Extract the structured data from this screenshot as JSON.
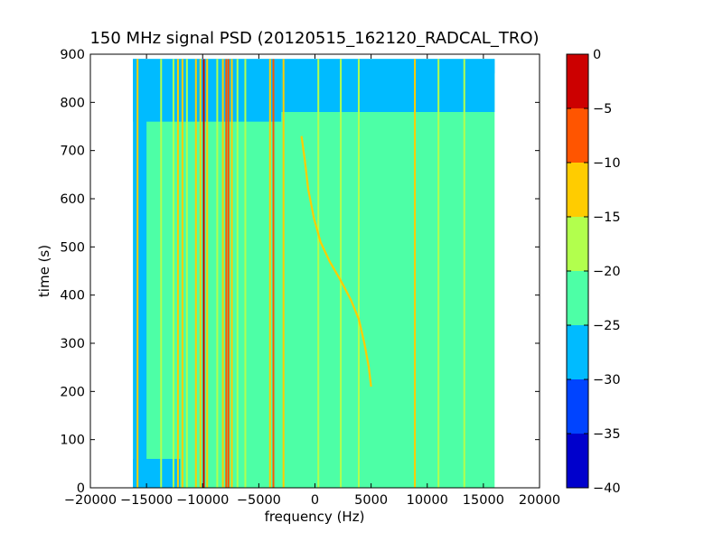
{
  "chart_data": {
    "type": "heatmap",
    "title": "150 MHz signal PSD (20120515_162120_RADCAL_TRO)",
    "xlabel": "frequency (Hz)",
    "ylabel": "time (s)",
    "xlim": [
      -20000,
      20000
    ],
    "ylim": [
      0,
      900
    ],
    "x_ticks": [
      -20000,
      -15000,
      -10000,
      -5000,
      0,
      5000,
      10000,
      15000,
      20000
    ],
    "y_ticks": [
      0,
      100,
      200,
      300,
      400,
      500,
      600,
      700,
      800,
      900
    ],
    "data_extent": {
      "freq_hz": [
        -16200,
        16000
      ],
      "time_s": [
        0,
        890
      ]
    },
    "colorbar": {
      "ticks": [
        0,
        -5,
        -10,
        -15,
        -20,
        -25,
        -30,
        -35,
        -40
      ],
      "levels": [
        {
          "from": -40,
          "to": -35,
          "color": "#0000cc"
        },
        {
          "from": -35,
          "to": -30,
          "color": "#0044ff"
        },
        {
          "from": -30,
          "to": -25,
          "color": "#00bbff"
        },
        {
          "from": -25,
          "to": -20,
          "color": "#4dffa6"
        },
        {
          "from": -20,
          "to": -15,
          "color": "#b2ff4d"
        },
        {
          "from": -15,
          "to": -10,
          "color": "#ffcc00"
        },
        {
          "from": -10,
          "to": -5,
          "color": "#ff5500"
        },
        {
          "from": -5,
          "to": 0,
          "color": "#cc0000"
        }
      ]
    },
    "background_regions": [
      {
        "freq": [
          -16200,
          16000
        ],
        "time": [
          0,
          890
        ],
        "level_db": -22.5
      },
      {
        "freq": [
          -3000,
          16000
        ],
        "time": [
          780,
          890
        ],
        "level_db": -27.5
      },
      {
        "freq": [
          -16200,
          -3000
        ],
        "time": [
          760,
          890
        ],
        "level_db": -27.5
      },
      {
        "freq": [
          -16200,
          -12000
        ],
        "time": [
          0,
          60
        ],
        "level_db": -27.5
      },
      {
        "freq": [
          -16200,
          -15000
        ],
        "time": [
          0,
          890
        ],
        "level_db": -27.5
      },
      {
        "freq": [
          -16200,
          16000
        ],
        "time": [
          860,
          890
        ],
        "level_db": -27.5
      }
    ],
    "steady_lines": [
      {
        "freq_hz": -15800,
        "time": [
          0,
          890
        ],
        "level_db": -12.5
      },
      {
        "freq_hz": -13700,
        "time": [
          0,
          890
        ],
        "level_db": -17.5
      },
      {
        "freq_hz": -12600,
        "time": [
          0,
          890
        ],
        "level_db": -17.5
      },
      {
        "freq_hz": -12200,
        "time": [
          0,
          890
        ],
        "level_db": -12.5
      },
      {
        "freq_hz": -11800,
        "time": [
          0,
          890
        ],
        "level_db": -12.5
      },
      {
        "freq_hz": -11400,
        "time": [
          0,
          890
        ],
        "level_db": -17.5
      },
      {
        "freq_hz": -10600,
        "time": [
          0,
          890
        ],
        "level_db": -12.5
      },
      {
        "freq_hz": -10200,
        "time": [
          0,
          890
        ],
        "level_db": -12.5
      },
      {
        "freq_hz": -9900,
        "time": [
          0,
          890
        ],
        "level_db": -2.5
      },
      {
        "freq_hz": -9600,
        "time": [
          0,
          890
        ],
        "level_db": -12.5
      },
      {
        "freq_hz": -8700,
        "time": [
          0,
          890
        ],
        "level_db": -17.5
      },
      {
        "freq_hz": -8200,
        "time": [
          0,
          890
        ],
        "level_db": -12.5
      },
      {
        "freq_hz": -7900,
        "time": [
          0,
          890
        ],
        "level_db": -7.5
      },
      {
        "freq_hz": -7700,
        "time": [
          0,
          890
        ],
        "level_db": -7.5
      },
      {
        "freq_hz": -7400,
        "time": [
          0,
          890
        ],
        "level_db": -12.5
      },
      {
        "freq_hz": -6900,
        "time": [
          0,
          890
        ],
        "level_db": -17.5
      },
      {
        "freq_hz": -6200,
        "time": [
          0,
          890
        ],
        "level_db": -17.5
      },
      {
        "freq_hz": -4000,
        "time": [
          0,
          890
        ],
        "level_db": -12.5
      },
      {
        "freq_hz": -3700,
        "time": [
          0,
          890
        ],
        "level_db": -7.5
      },
      {
        "freq_hz": -2800,
        "time": [
          0,
          890
        ],
        "level_db": -12.5
      },
      {
        "freq_hz": 300,
        "time": [
          0,
          890
        ],
        "level_db": -17.5
      },
      {
        "freq_hz": 2300,
        "time": [
          0,
          890
        ],
        "level_db": -17.5
      },
      {
        "freq_hz": 3900,
        "time": [
          0,
          890
        ],
        "level_db": -17.5
      },
      {
        "freq_hz": 8900,
        "time": [
          0,
          890
        ],
        "level_db": -12.5
      },
      {
        "freq_hz": 11000,
        "time": [
          0,
          890
        ],
        "level_db": -17.5
      },
      {
        "freq_hz": 13300,
        "time": [
          0,
          890
        ],
        "level_db": -17.5
      }
    ],
    "drifting_track": {
      "level_db": -12.5,
      "points": [
        {
          "time_s": 730,
          "freq_hz": -1200
        },
        {
          "time_s": 680,
          "freq_hz": -900
        },
        {
          "time_s": 620,
          "freq_hz": -600
        },
        {
          "time_s": 560,
          "freq_hz": -100
        },
        {
          "time_s": 510,
          "freq_hz": 500
        },
        {
          "time_s": 470,
          "freq_hz": 1300
        },
        {
          "time_s": 430,
          "freq_hz": 2300
        },
        {
          "time_s": 390,
          "freq_hz": 3200
        },
        {
          "time_s": 350,
          "freq_hz": 3900
        },
        {
          "time_s": 300,
          "freq_hz": 4400
        },
        {
          "time_s": 250,
          "freq_hz": 4800
        },
        {
          "time_s": 210,
          "freq_hz": 5000
        }
      ]
    }
  }
}
